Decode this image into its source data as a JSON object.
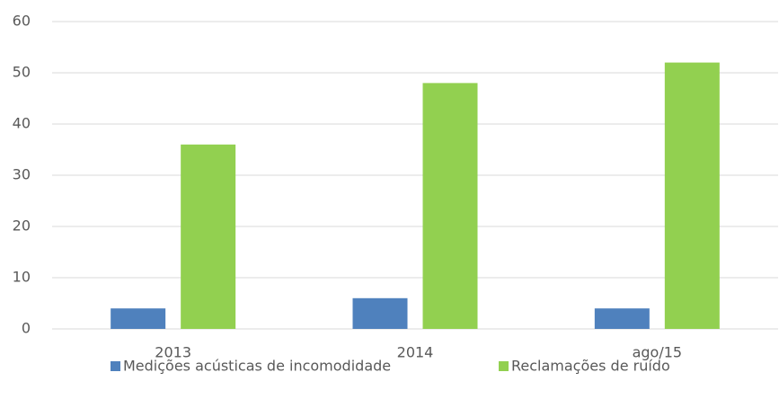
{
  "chart_data": {
    "type": "bar",
    "categories": [
      "2013",
      "2014",
      "ago/15"
    ],
    "series": [
      {
        "name": "Medições acústicas de incomodidade",
        "color": "#4f81bd",
        "values": [
          4,
          6,
          4
        ]
      },
      {
        "name": "Reclamações de ruído",
        "color": "#92d050",
        "values": [
          36,
          48,
          52
        ]
      }
    ],
    "ylim": [
      0,
      60
    ],
    "yticks": [
      0,
      10,
      20,
      30,
      40,
      50,
      60
    ],
    "grid": true,
    "legend": "bottom"
  }
}
